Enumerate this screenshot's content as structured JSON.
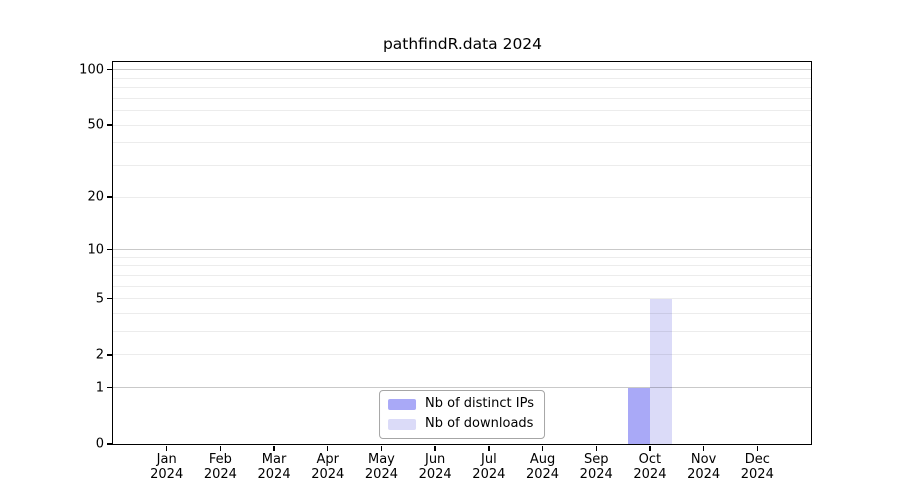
{
  "chart_data": {
    "type": "bar",
    "title": "pathfindR.data 2024",
    "xlabel": "",
    "ylabel": "",
    "categories": [
      "Jan",
      "Feb",
      "Mar",
      "Apr",
      "May",
      "Jun",
      "Jul",
      "Aug",
      "Sep",
      "Oct",
      "Nov",
      "Dec"
    ],
    "category_year": "2024",
    "series": [
      {
        "name": "Nb of distinct IPs",
        "color": "#a9a9f7",
        "values": [
          0,
          0,
          0,
          0,
          0,
          0,
          0,
          0,
          0,
          1,
          0,
          0
        ]
      },
      {
        "name": "Nb of downloads",
        "color": "#dbdbf8",
        "values": [
          0,
          0,
          0,
          0,
          0,
          0,
          0,
          0,
          0,
          5,
          0,
          0
        ]
      }
    ],
    "yscale": "log1p",
    "ylim": [
      0,
      110
    ],
    "yticks": [
      0,
      1,
      2,
      5,
      10,
      20,
      50,
      100
    ],
    "grid": {
      "major_values": [
        1,
        10,
        100
      ],
      "minor_values": [
        2,
        3,
        4,
        5,
        6,
        7,
        8,
        9,
        20,
        30,
        40,
        50,
        60,
        70,
        80,
        90
      ],
      "major_color": "#c9c9c9",
      "minor_color": "#ececec"
    },
    "legend": {
      "position": "bottom-center",
      "entries": [
        "Nb of distinct IPs",
        "Nb of downloads"
      ]
    },
    "colors": {
      "axis": "#000000",
      "background": "#ffffff",
      "legend_border": "#a6a6a6"
    }
  }
}
